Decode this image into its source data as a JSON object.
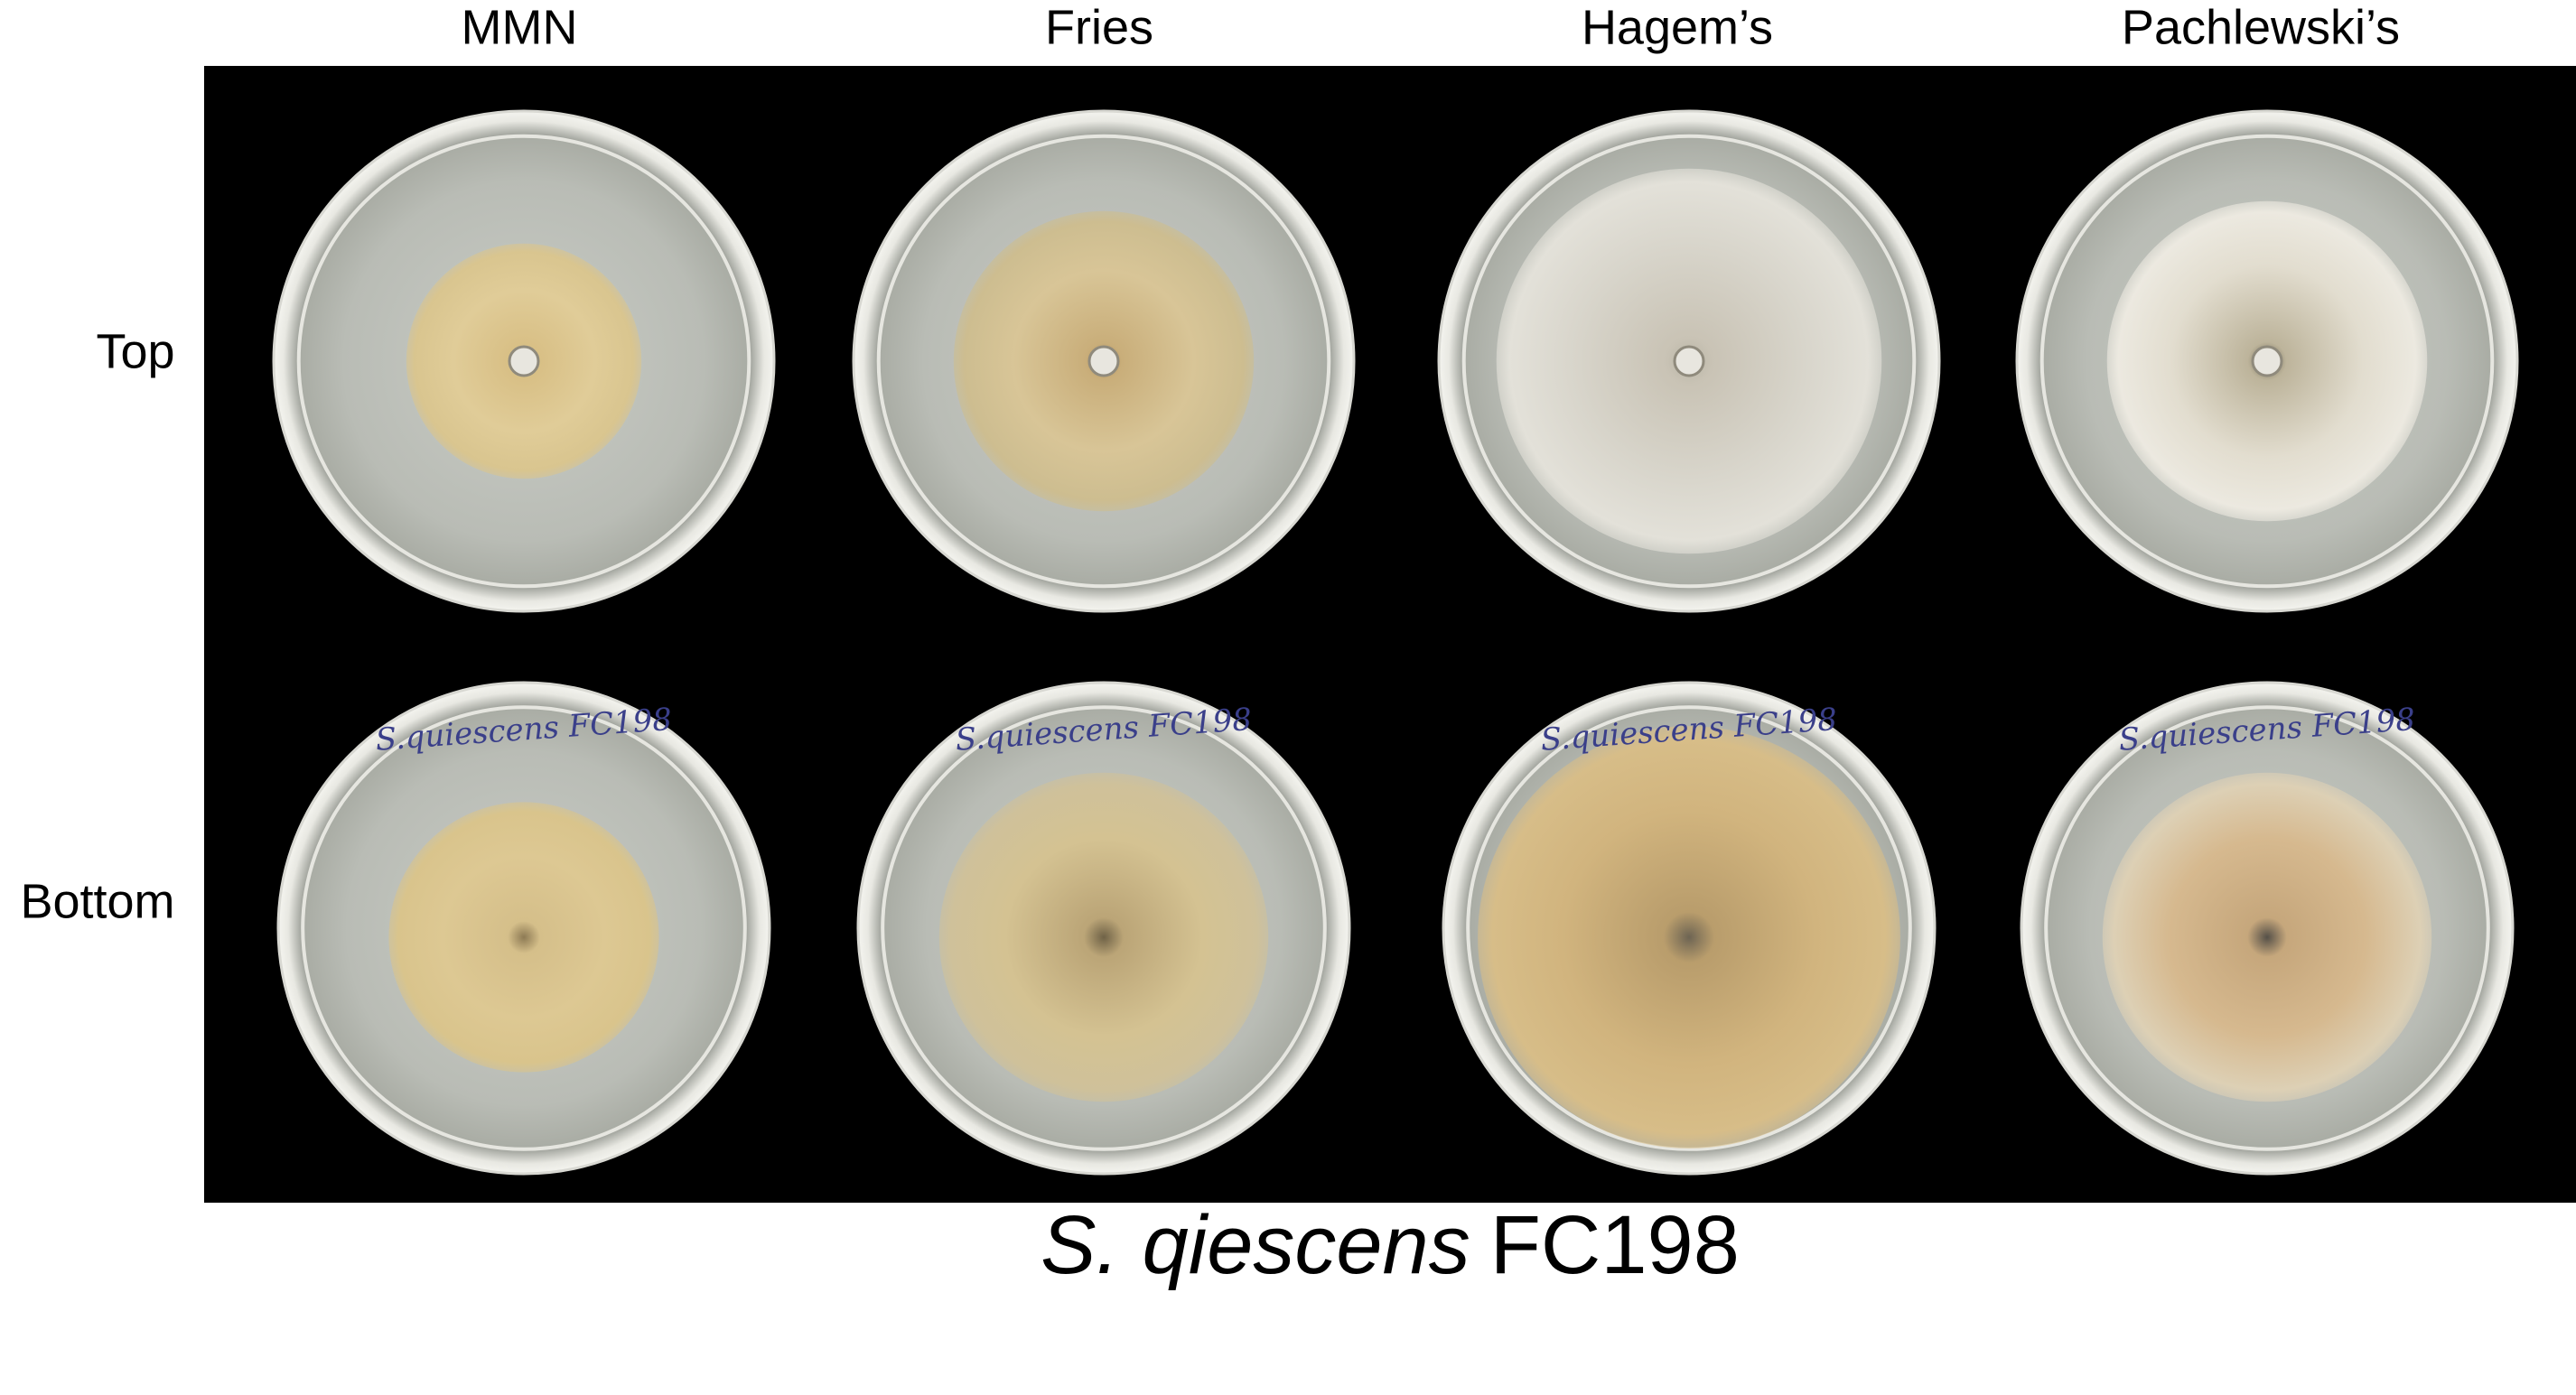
{
  "columns": [
    "MMN",
    "Fries",
    "Hagem’s",
    "Pachlewski’s"
  ],
  "rows": [
    "Top",
    "Bottom"
  ],
  "dish_labels": [
    "S.quiescens FC198",
    "S.quiescens FC198",
    "S.quiescens FC198",
    "S.quiescens FC198"
  ],
  "caption": {
    "species": "S. qiescens",
    "strain": "FC198"
  }
}
